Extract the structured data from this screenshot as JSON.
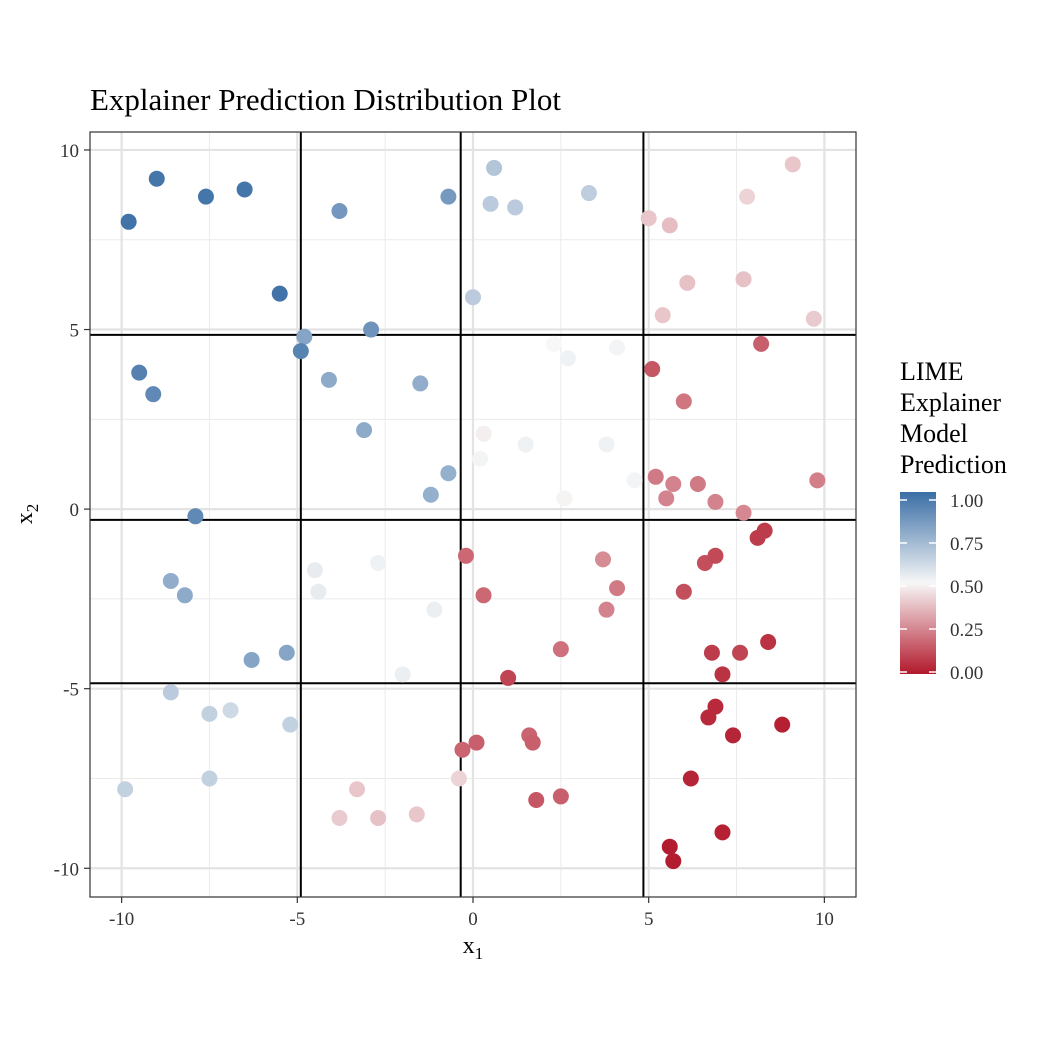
{
  "chart_data": {
    "type": "scatter",
    "title": "Explainer Prediction Distribution Plot",
    "xlabel": {
      "main": "x",
      "sub": "1"
    },
    "ylabel": {
      "main": "x",
      "sub": "2"
    },
    "xlim": [
      -10.9,
      10.9
    ],
    "ylim": [
      -10.8,
      10.5
    ],
    "x_ticks": [
      -10,
      -5,
      0,
      5,
      10
    ],
    "y_ticks": [
      -10,
      -5,
      0,
      5,
      10
    ],
    "x_tick_labels": [
      "-10",
      "-5",
      "0",
      "5",
      "10"
    ],
    "y_tick_labels": [
      "-10",
      "-5",
      "0",
      "5",
      "10"
    ],
    "grid": true,
    "partition_lines": {
      "x": [
        -4.9,
        -0.35,
        4.85
      ],
      "y": [
        4.85,
        -0.3,
        -4.85
      ]
    },
    "legend": {
      "title_lines": [
        "LIME",
        "Explainer",
        "Model",
        "Prediction"
      ],
      "position": "right",
      "ticks": [
        1.0,
        0.75,
        0.5,
        0.25,
        0.0
      ],
      "tick_labels": [
        "1.00",
        "0.75",
        "0.50",
        "0.25",
        "0.00"
      ],
      "colors": {
        "high": "#3a6ea5",
        "mid": "#f7f7f7",
        "low": "#b2182b"
      }
    },
    "points": [
      {
        "x": -9.8,
        "y": 8.0,
        "p": 0.98
      },
      {
        "x": -9.0,
        "y": 9.2,
        "p": 0.97
      },
      {
        "x": -7.6,
        "y": 8.7,
        "p": 0.97
      },
      {
        "x": -6.5,
        "y": 8.9,
        "p": 0.97
      },
      {
        "x": -5.5,
        "y": 6.0,
        "p": 0.98
      },
      {
        "x": -3.8,
        "y": 8.3,
        "p": 0.85
      },
      {
        "x": -0.7,
        "y": 8.7,
        "p": 0.84
      },
      {
        "x": 0.6,
        "y": 9.5,
        "p": 0.68
      },
      {
        "x": 0.5,
        "y": 8.5,
        "p": 0.66
      },
      {
        "x": 1.2,
        "y": 8.4,
        "p": 0.66
      },
      {
        "x": 3.3,
        "y": 8.8,
        "p": 0.65
      },
      {
        "x": 0.0,
        "y": 5.9,
        "p": 0.66
      },
      {
        "x": 5.0,
        "y": 8.1,
        "p": 0.39
      },
      {
        "x": 5.6,
        "y": 7.9,
        "p": 0.37
      },
      {
        "x": 7.8,
        "y": 8.7,
        "p": 0.42
      },
      {
        "x": 9.1,
        "y": 9.6,
        "p": 0.39
      },
      {
        "x": 6.1,
        "y": 6.3,
        "p": 0.38
      },
      {
        "x": 7.7,
        "y": 6.4,
        "p": 0.38
      },
      {
        "x": 5.4,
        "y": 5.4,
        "p": 0.39
      },
      {
        "x": 9.7,
        "y": 5.3,
        "p": 0.4
      },
      {
        "x": -4.8,
        "y": 4.8,
        "p": 0.8
      },
      {
        "x": -2.9,
        "y": 5.0,
        "p": 0.86
      },
      {
        "x": -4.9,
        "y": 4.4,
        "p": 0.92
      },
      {
        "x": -9.5,
        "y": 3.8,
        "p": 0.93
      },
      {
        "x": -9.1,
        "y": 3.2,
        "p": 0.9
      },
      {
        "x": -4.1,
        "y": 3.6,
        "p": 0.78
      },
      {
        "x": -1.5,
        "y": 3.5,
        "p": 0.77
      },
      {
        "x": -3.1,
        "y": 2.2,
        "p": 0.78
      },
      {
        "x": -0.7,
        "y": 1.0,
        "p": 0.76
      },
      {
        "x": -1.2,
        "y": 0.4,
        "p": 0.76
      },
      {
        "x": -7.9,
        "y": -0.2,
        "p": 0.9
      },
      {
        "x": 2.3,
        "y": 4.6,
        "p": 0.5
      },
      {
        "x": 2.7,
        "y": 4.2,
        "p": 0.52
      },
      {
        "x": 4.1,
        "y": 4.5,
        "p": 0.51
      },
      {
        "x": 0.3,
        "y": 2.1,
        "p": 0.48
      },
      {
        "x": 1.5,
        "y": 1.8,
        "p": 0.52
      },
      {
        "x": 3.8,
        "y": 1.8,
        "p": 0.52
      },
      {
        "x": 0.2,
        "y": 1.4,
        "p": 0.51
      },
      {
        "x": 2.6,
        "y": 0.3,
        "p": 0.49
      },
      {
        "x": 4.6,
        "y": 0.8,
        "p": 0.51
      },
      {
        "x": 8.2,
        "y": 4.6,
        "p": 0.16
      },
      {
        "x": 5.1,
        "y": 3.9,
        "p": 0.14
      },
      {
        "x": 6.0,
        "y": 3.0,
        "p": 0.21
      },
      {
        "x": 5.2,
        "y": 0.9,
        "p": 0.22
      },
      {
        "x": 5.7,
        "y": 0.7,
        "p": 0.24
      },
      {
        "x": 6.4,
        "y": 0.7,
        "p": 0.22
      },
      {
        "x": 5.5,
        "y": 0.3,
        "p": 0.24
      },
      {
        "x": 6.9,
        "y": 0.2,
        "p": 0.24
      },
      {
        "x": 9.8,
        "y": 0.8,
        "p": 0.23
      },
      {
        "x": 7.7,
        "y": -0.1,
        "p": 0.25
      },
      {
        "x": -8.6,
        "y": -2.0,
        "p": 0.77
      },
      {
        "x": -8.2,
        "y": -2.4,
        "p": 0.78
      },
      {
        "x": -4.5,
        "y": -1.7,
        "p": 0.54
      },
      {
        "x": -4.4,
        "y": -2.3,
        "p": 0.54
      },
      {
        "x": -2.7,
        "y": -1.5,
        "p": 0.52
      },
      {
        "x": -1.1,
        "y": -2.8,
        "p": 0.53
      },
      {
        "x": -6.3,
        "y": -4.2,
        "p": 0.8
      },
      {
        "x": -5.3,
        "y": -4.0,
        "p": 0.8
      },
      {
        "x": -2.0,
        "y": -4.6,
        "p": 0.53
      },
      {
        "x": -0.2,
        "y": -1.3,
        "p": 0.18
      },
      {
        "x": 0.3,
        "y": -2.4,
        "p": 0.18
      },
      {
        "x": 3.7,
        "y": -1.4,
        "p": 0.26
      },
      {
        "x": 4.1,
        "y": -2.2,
        "p": 0.22
      },
      {
        "x": 3.8,
        "y": -2.8,
        "p": 0.24
      },
      {
        "x": 2.5,
        "y": -3.9,
        "p": 0.2
      },
      {
        "x": 1.0,
        "y": -4.7,
        "p": 0.1
      },
      {
        "x": 6.0,
        "y": -2.3,
        "p": 0.12
      },
      {
        "x": 6.6,
        "y": -1.5,
        "p": 0.12
      },
      {
        "x": 6.9,
        "y": -1.3,
        "p": 0.11
      },
      {
        "x": 8.1,
        "y": -0.8,
        "p": 0.08
      },
      {
        "x": 8.3,
        "y": -0.6,
        "p": 0.08
      },
      {
        "x": 6.8,
        "y": -4.0,
        "p": 0.08
      },
      {
        "x": 7.6,
        "y": -4.0,
        "p": 0.1
      },
      {
        "x": 8.4,
        "y": -3.7,
        "p": 0.06
      },
      {
        "x": 7.1,
        "y": -4.6,
        "p": 0.06
      },
      {
        "x": -8.6,
        "y": -5.1,
        "p": 0.66
      },
      {
        "x": -7.5,
        "y": -5.7,
        "p": 0.64
      },
      {
        "x": -6.9,
        "y": -5.6,
        "p": 0.61
      },
      {
        "x": -5.2,
        "y": -6.0,
        "p": 0.64
      },
      {
        "x": -9.9,
        "y": -7.8,
        "p": 0.64
      },
      {
        "x": -7.5,
        "y": -7.5,
        "p": 0.64
      },
      {
        "x": -3.3,
        "y": -7.8,
        "p": 0.39
      },
      {
        "x": -3.8,
        "y": -8.6,
        "p": 0.4
      },
      {
        "x": -2.7,
        "y": -8.6,
        "p": 0.38
      },
      {
        "x": -1.6,
        "y": -8.5,
        "p": 0.39
      },
      {
        "x": -0.4,
        "y": -7.5,
        "p": 0.42
      },
      {
        "x": -0.3,
        "y": -6.7,
        "p": 0.17
      },
      {
        "x": 0.1,
        "y": -6.5,
        "p": 0.16
      },
      {
        "x": 1.6,
        "y": -6.3,
        "p": 0.17
      },
      {
        "x": 1.7,
        "y": -6.5,
        "p": 0.16
      },
      {
        "x": 1.8,
        "y": -8.1,
        "p": 0.14
      },
      {
        "x": 2.5,
        "y": -8.0,
        "p": 0.16
      },
      {
        "x": 6.7,
        "y": -5.8,
        "p": 0.04
      },
      {
        "x": 6.9,
        "y": -5.5,
        "p": 0.04
      },
      {
        "x": 7.4,
        "y": -6.3,
        "p": 0.03
      },
      {
        "x": 8.8,
        "y": -6.0,
        "p": 0.02
      },
      {
        "x": 6.2,
        "y": -7.5,
        "p": 0.03
      },
      {
        "x": 7.1,
        "y": -9.0,
        "p": 0.02
      },
      {
        "x": 5.6,
        "y": -9.4,
        "p": 0.01
      },
      {
        "x": 5.7,
        "y": -9.8,
        "p": 0.01
      }
    ]
  }
}
